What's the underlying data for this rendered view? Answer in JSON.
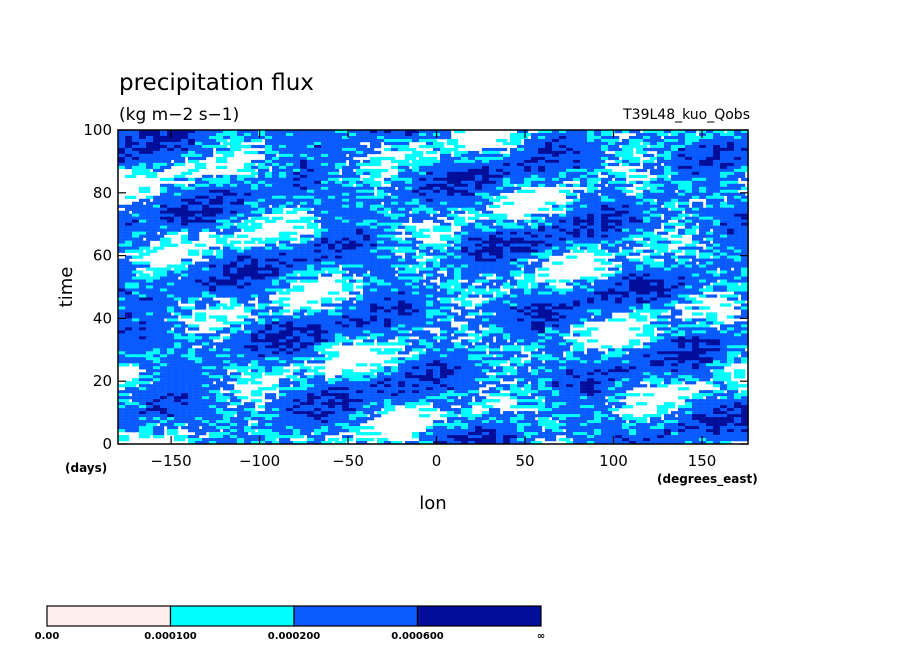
{
  "chart_data": {
    "type": "heatmap",
    "title": "precipitation flux",
    "units_label": "(kg m−2 s−1)",
    "run_label": "T39L48_kuo_Qobs",
    "xlabel": "lon",
    "ylabel": "time",
    "x_unit_label": "(degrees_east)",
    "y_unit_label": "(days)",
    "xlim": [
      -180,
      176
    ],
    "ylim": [
      0,
      100
    ],
    "xticks": [
      -150,
      -100,
      -50,
      0,
      50,
      100,
      150
    ],
    "xtick_labels": [
      "−150",
      "−100",
      "−50",
      "0",
      "50",
      "100",
      "150"
    ],
    "yticks": [
      0,
      20,
      40,
      60,
      80,
      100
    ],
    "ytick_labels": [
      "0",
      "20",
      "40",
      "60",
      "80",
      "100"
    ],
    "colorbar": {
      "levels": [
        0.0,
        0.0001,
        0.0002,
        0.0006,
        null
      ],
      "level_labels": [
        "0.00",
        "0.000100",
        "0.000200",
        "0.000600",
        "∞"
      ],
      "colors": [
        "#fff0ee",
        "#00ffff",
        "#0a5bff",
        "#000e99"
      ]
    },
    "grid": false,
    "legend_position": "bottom-left"
  }
}
